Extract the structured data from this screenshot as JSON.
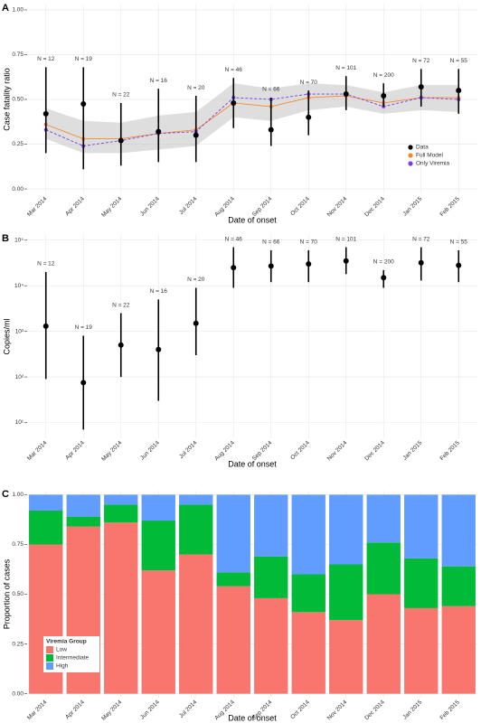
{
  "chart_data": [
    {
      "type": "errorbar_line",
      "panel_label": "A",
      "ylabel": "Case fatality ratio",
      "xlabel": "Date of onset",
      "categories": [
        "Mar 2014",
        "Apr 2014",
        "May 2014",
        "Jun 2014",
        "Jul 2014",
        "Aug 2014",
        "Sep 2014",
        "Oct 2014",
        "Nov 2014",
        "Dec 2014",
        "Jan 2015",
        "Feb 2015"
      ],
      "ylim": [
        -0.03,
        1.03
      ],
      "yticks": [
        {
          "value": 0,
          "label": "0.00"
        },
        {
          "value": 0.25,
          "label": "0.25"
        },
        {
          "value": 0.5,
          "label": "0.50"
        },
        {
          "value": 0.75,
          "label": "0.75"
        },
        {
          "value": 1,
          "label": "1.00"
        }
      ],
      "grid": true,
      "legend": "lower right",
      "n_labels": [
        "N = 12",
        "N = 19",
        "N = 22",
        "N = 16",
        "N = 20",
        "N = 46",
        "N = 66",
        "N = 70",
        "N = 101",
        "N = 200",
        "N = 72",
        "N = 55"
      ],
      "band": {
        "color": "#bebebe",
        "lower": [
          0.28,
          0.2,
          0.2,
          0.22,
          0.24,
          0.4,
          0.38,
          0.44,
          0.46,
          0.42,
          0.44,
          0.43
        ],
        "upper": [
          0.45,
          0.38,
          0.37,
          0.41,
          0.43,
          0.59,
          0.56,
          0.59,
          0.58,
          0.54,
          0.58,
          0.58
        ]
      },
      "series": [
        {
          "name": "Data",
          "color": "#000000",
          "values": [
            0.42,
            0.475,
            0.27,
            0.32,
            0.3,
            0.48,
            0.33,
            0.4,
            0.53,
            0.52,
            0.57,
            0.55
          ],
          "lower": [
            0.2,
            0.11,
            0.13,
            0.15,
            0.15,
            0.34,
            0.24,
            0.3,
            0.44,
            0.46,
            0.46,
            0.42
          ],
          "upper": [
            0.68,
            0.68,
            0.48,
            0.56,
            0.52,
            0.62,
            0.51,
            0.55,
            0.63,
            0.59,
            0.67,
            0.67
          ]
        },
        {
          "name": "Full Model",
          "color": "#f4892e",
          "values": [
            0.36,
            0.28,
            0.28,
            0.31,
            0.33,
            0.48,
            0.46,
            0.51,
            0.52,
            0.48,
            0.51,
            0.51
          ]
        },
        {
          "name": "Only Viremia",
          "color": "#7a3fe0",
          "dashed": true,
          "values": [
            0.33,
            0.24,
            0.27,
            0.31,
            0.32,
            0.51,
            0.5,
            0.53,
            0.53,
            0.46,
            0.51,
            0.5
          ]
        }
      ]
    },
    {
      "type": "errorbar",
      "panel_label": "B",
      "ylabel": "Copies/ml",
      "xlabel": "Date of onset",
      "log": true,
      "categories": [
        "Mar 2014",
        "Apr 2014",
        "May 2014",
        "Jun 2014",
        "Jul 2014",
        "Aug 2014",
        "Sep 2014",
        "Oct 2014",
        "Nov 2014",
        "Dec 2014",
        "Jan 2015",
        "Feb 2015"
      ],
      "ylim": [
        4.5,
        130000
      ],
      "yticks": [
        {
          "value": 10,
          "label": "10¹"
        },
        {
          "value": 100,
          "label": "10²"
        },
        {
          "value": 1000,
          "label": "10³"
        },
        {
          "value": 10000,
          "label": "10⁴"
        },
        {
          "value": 100000,
          "label": "10⁵"
        }
      ],
      "grid": true,
      "n_labels": [
        "N = 12",
        "N = 19",
        "N = 22",
        "N = 16",
        "N = 20",
        "N = 46",
        "N = 66",
        "N = 70",
        "N = 101",
        "N = 200",
        "N = 72",
        "N = 55"
      ],
      "series": [
        {
          "color": "#000000",
          "values": [
            1300,
            75,
            500,
            400,
            1500,
            25000,
            27000,
            30000,
            35000,
            15000,
            32000,
            28000
          ],
          "lower": [
            90,
            7,
            100,
            30,
            300,
            9000,
            12000,
            12000,
            18000,
            9000,
            13000,
            12000
          ],
          "upper": [
            20000,
            800,
            2500,
            5000,
            9000,
            70000,
            60000,
            60000,
            70000,
            22000,
            70000,
            60000
          ]
        }
      ]
    },
    {
      "type": "stacked_bar",
      "panel_label": "C",
      "ylabel": "Proportion of cases",
      "xlabel": "Date of onset",
      "categories": [
        "Mar 2014",
        "Apr 2014",
        "May 2014",
        "Jun 2014",
        "Jul 2014",
        "Aug 2014",
        "Sep 2014",
        "Oct 2014",
        "Nov 2014",
        "Dec 2014",
        "Jan 2015",
        "Feb 2015"
      ],
      "ylim": [
        -0.02,
        1.02
      ],
      "yticks": [
        {
          "value": 0,
          "label": "0.00"
        },
        {
          "value": 0.25,
          "label": "0.25"
        },
        {
          "value": 0.5,
          "label": "0.50"
        },
        {
          "value": 0.75,
          "label": "0.75"
        },
        {
          "value": 1,
          "label": "1.00"
        }
      ],
      "grid": true,
      "legend": "lower left",
      "legend_title": "Viremia Group",
      "series": [
        {
          "name": "Low",
          "color": "#f8766d",
          "values": [
            0.75,
            0.84,
            0.86,
            0.62,
            0.7,
            0.54,
            0.48,
            0.41,
            0.37,
            0.5,
            0.43,
            0.44
          ]
        },
        {
          "name": "Intermediate",
          "color": "#00ba38",
          "values": [
            0.17,
            0.05,
            0.09,
            0.25,
            0.25,
            0.07,
            0.21,
            0.19,
            0.28,
            0.26,
            0.25,
            0.2
          ]
        },
        {
          "name": "High",
          "color": "#619cff",
          "values": [
            0.08,
            0.11,
            0.05,
            0.13,
            0.05,
            0.39,
            0.31,
            0.4,
            0.35,
            0.24,
            0.32,
            0.36
          ]
        }
      ]
    }
  ]
}
